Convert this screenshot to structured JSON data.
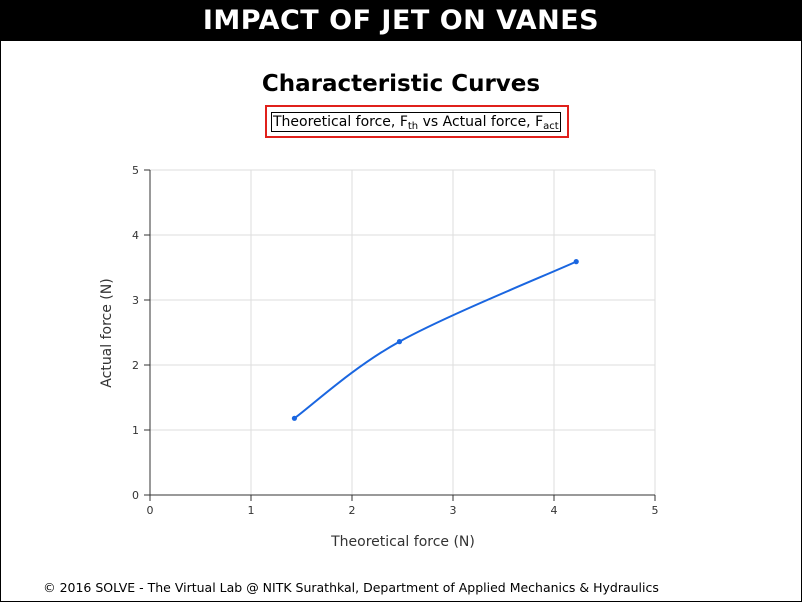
{
  "header": {
    "banner": "IMPACT OF JET ON VANES"
  },
  "page_title": "Characteristic Curves",
  "subtitle": {
    "lead": "Theoretical force, F",
    "sub1": "th",
    "mid": " vs Actual force, F",
    "sub2": "act"
  },
  "footer": "© 2016 SOLVE - The Virtual Lab @ NITK Surathkal, Department of Applied Mechanics & Hydraulics",
  "colors": {
    "series": "#1a66e0",
    "highlight": "#e0201b",
    "grid": "#dddddd",
    "axis": "#333333"
  },
  "chart_data": {
    "type": "line",
    "title": "Characteristic Curves",
    "subtitle": "Theoretical force, Fth vs Actual force, Fact",
    "xlabel": "Theoretical force (N)",
    "ylabel": "Actual force (N)",
    "xlim": [
      0,
      5
    ],
    "ylim": [
      0,
      5
    ],
    "xticks": [
      "0",
      "1",
      "2",
      "3",
      "4",
      "5"
    ],
    "yticks": [
      "0",
      "1",
      "2",
      "3",
      "4",
      "5"
    ],
    "grid": true,
    "smooth": true,
    "series": [
      {
        "x": [
          1.43,
          2.47,
          4.22
        ],
        "y": [
          1.18,
          2.36,
          3.59
        ]
      }
    ]
  }
}
